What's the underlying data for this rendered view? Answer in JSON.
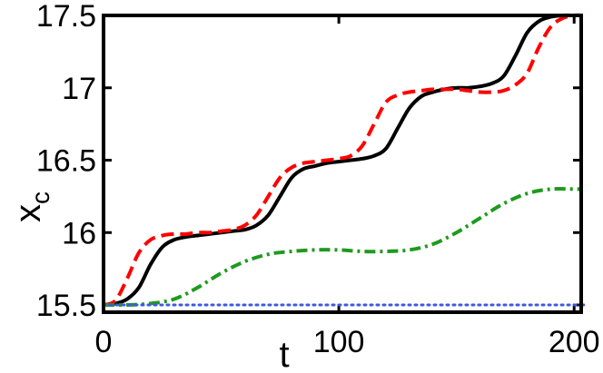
{
  "chart_data": {
    "type": "line",
    "title": "",
    "xlabel": "t",
    "ylabel": "x",
    "ylabel_subscript": "c",
    "xlim": [
      0,
      203
    ],
    "ylim": [
      15.45,
      17.5
    ],
    "xticks": [
      0,
      100,
      200
    ],
    "xtick_labels": [
      "0",
      "100",
      "200"
    ],
    "yticks": [
      15.5,
      16,
      16.5,
      17,
      17.5
    ],
    "ytick_labels": [
      "15.5",
      "16",
      "16.5",
      "17",
      "17.5"
    ],
    "grid": false,
    "legend": "none",
    "series": [
      {
        "color": "#000000",
        "style": "solid",
        "x": [
          0,
          5,
          10,
          15,
          20,
          25,
          30,
          35,
          40,
          45,
          50,
          55,
          60,
          65,
          70,
          75,
          80,
          85,
          90,
          95,
          100,
          105,
          110,
          115,
          120,
          125,
          130,
          135,
          140,
          145,
          150,
          155,
          160,
          165,
          170,
          175,
          180,
          185,
          190,
          195,
          200,
          203
        ],
        "y": [
          15.5,
          15.51,
          15.54,
          15.62,
          15.78,
          15.9,
          15.95,
          15.97,
          15.98,
          15.99,
          16.0,
          16.01,
          16.02,
          16.05,
          16.12,
          16.25,
          16.38,
          16.44,
          16.46,
          16.48,
          16.49,
          16.5,
          16.51,
          16.53,
          16.58,
          16.72,
          16.86,
          16.94,
          16.97,
          16.99,
          17.0,
          17.0,
          17.01,
          17.03,
          17.08,
          17.22,
          17.38,
          17.46,
          17.49,
          17.5,
          17.5,
          17.5
        ]
      },
      {
        "color": "#ff0000",
        "style": "dashed",
        "x": [
          0,
          5,
          10,
          15,
          20,
          25,
          30,
          35,
          40,
          45,
          50,
          55,
          60,
          65,
          70,
          75,
          80,
          85,
          90,
          95,
          100,
          105,
          110,
          115,
          120,
          125,
          130,
          135,
          140,
          145,
          150,
          155,
          160,
          165,
          170,
          175,
          180,
          185,
          190,
          195,
          200,
          203
        ],
        "y": [
          15.5,
          15.53,
          15.68,
          15.86,
          15.95,
          15.98,
          15.99,
          15.99,
          16.0,
          16.0,
          16.01,
          16.02,
          16.05,
          16.12,
          16.25,
          16.38,
          16.45,
          16.48,
          16.49,
          16.5,
          16.51,
          16.53,
          16.6,
          16.75,
          16.9,
          16.95,
          16.97,
          16.98,
          16.99,
          16.99,
          16.99,
          16.98,
          16.97,
          16.97,
          16.98,
          17.02,
          17.1,
          17.28,
          17.42,
          17.48,
          17.5,
          17.5
        ]
      },
      {
        "color": "#1f9a1f",
        "style": "dash-dot",
        "x": [
          0,
          10,
          20,
          30,
          40,
          50,
          60,
          70,
          80,
          90,
          100,
          110,
          120,
          130,
          140,
          150,
          160,
          170,
          180,
          190,
          200,
          203
        ],
        "y": [
          15.5,
          15.5,
          15.51,
          15.54,
          15.62,
          15.72,
          15.8,
          15.85,
          15.87,
          15.88,
          15.88,
          15.87,
          15.87,
          15.88,
          15.92,
          16.0,
          16.1,
          16.2,
          16.27,
          16.3,
          16.3,
          16.3
        ]
      },
      {
        "color": "#3d5adf",
        "style": "dotted",
        "x": [
          0,
          50,
          100,
          150,
          200,
          203
        ],
        "y": [
          15.5,
          15.5,
          15.5,
          15.5,
          15.5,
          15.5
        ]
      }
    ]
  }
}
